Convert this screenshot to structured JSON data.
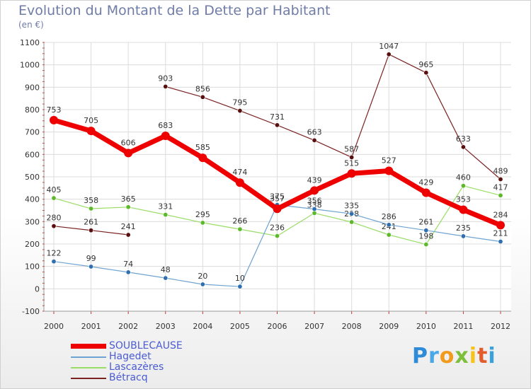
{
  "chart_data": {
    "type": "line",
    "title": "Evolution du Montant de la Dette par Habitant",
    "subtitle": "(en €)",
    "x": [
      "2000",
      "2001",
      "2002",
      "2003",
      "2004",
      "2005",
      "2006",
      "2007",
      "2008",
      "2009",
      "2010",
      "2011",
      "2012"
    ],
    "ylim": [
      -100,
      1100
    ],
    "yticks": [
      "-100",
      "0",
      "100",
      "200",
      "300",
      "400",
      "500",
      "600",
      "700",
      "800",
      "900",
      "1000",
      "1100"
    ],
    "grid": true,
    "legend_position": "bottom-left",
    "series": [
      {
        "name": "SOUBLECAUSE",
        "color": "#ee0000",
        "values": [
          753,
          705,
          606,
          683,
          585,
          474,
          357,
          439,
          515,
          527,
          429,
          353,
          284
        ],
        "labels": [
          "753",
          "705",
          "606",
          "683",
          "585",
          "474",
          "357",
          "439",
          "515",
          "527",
          "429",
          "353",
          "284"
        ]
      },
      {
        "name": "Hagedet",
        "color": "#6ea3d2",
        "values": [
          122,
          99,
          74,
          48,
          20,
          10,
          375,
          356,
          335,
          286,
          261,
          235,
          211
        ],
        "labels": [
          "122",
          "99",
          "74",
          "48",
          "20",
          "10",
          "375",
          "356",
          "335",
          "286",
          "261",
          "235",
          "211"
        ]
      },
      {
        "name": "Lascazères",
        "color": "#99dd66",
        "values": [
          405,
          358,
          365,
          331,
          295,
          266,
          236,
          338,
          298,
          241,
          198,
          460,
          417
        ],
        "labels": [
          "405",
          "358",
          "365",
          "331",
          "295",
          "266",
          "236",
          "338",
          "298",
          "241",
          "198",
          "460",
          "417"
        ]
      },
      {
        "name": "Bétracq",
        "color": "#7a2222",
        "values": [
          280,
          261,
          241,
          903,
          856,
          795,
          731,
          663,
          587,
          1047,
          965,
          633,
          489
        ],
        "labels": [
          "280",
          "261",
          "241",
          "903",
          "856",
          "795",
          "731",
          "663",
          "587",
          "1047",
          "965",
          "633",
          "489"
        ],
        "breaks_after": [
          "2002"
        ]
      }
    ]
  },
  "logo": {
    "letters": [
      "P",
      "r",
      "o",
      "x",
      "i",
      "t",
      "i"
    ],
    "colors": [
      "#2e8bd8",
      "#4aa8e8",
      "#f29a1e",
      "#7cbf3a",
      "#f6c21c",
      "#e35d2a",
      "#3aa2d9"
    ]
  }
}
